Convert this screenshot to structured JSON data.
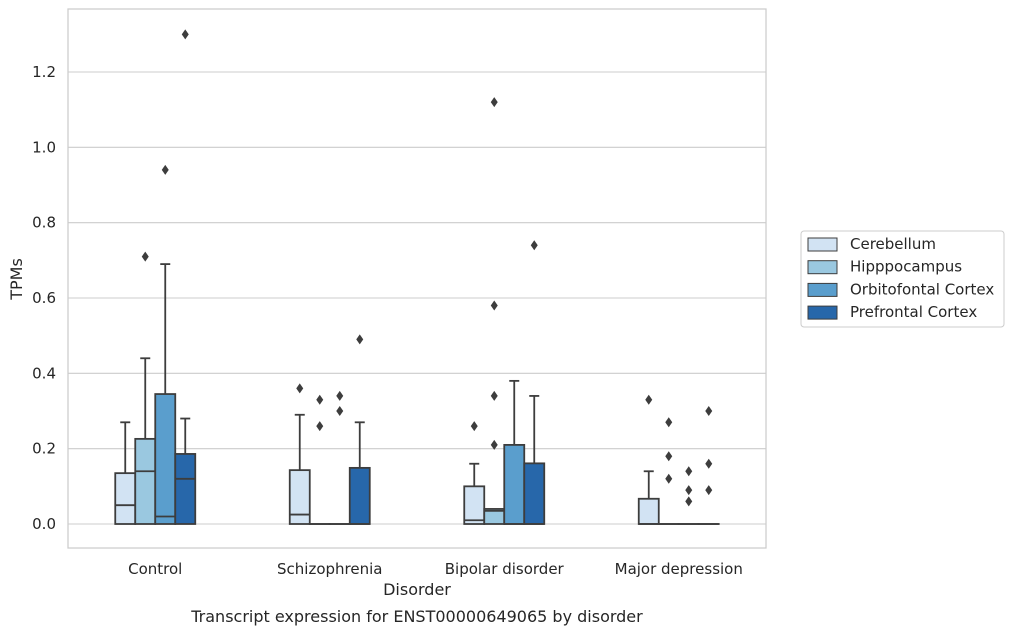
{
  "chart_data": {
    "type": "box",
    "title": "",
    "caption": "Transcript expression for ENST00000649065 by disorder",
    "xlabel": "Disorder",
    "ylabel": "TPMs",
    "ylim": [
      -0.065,
      1.375
    ],
    "yticks": [
      0.0,
      0.2,
      0.4,
      0.6,
      0.8,
      1.0,
      1.2
    ],
    "ytick_labels": [
      "0.0",
      "0.2",
      "0.4",
      "0.6",
      "0.8",
      "1.0",
      "1.2"
    ],
    "grid": "horizontal",
    "legend_position": "right",
    "categories": [
      "Control",
      "Schizophrenia",
      "Bipolar disorder",
      "Major depression"
    ],
    "series": [
      {
        "name": "Cerebellum",
        "color": "#d2e3f3",
        "boxes": [
          {
            "q1": 0.0,
            "median": 0.05,
            "q3": 0.135,
            "whisker_low": 0.0,
            "whisker_high": 0.27,
            "outliers": []
          },
          {
            "q1": 0.0,
            "median": 0.025,
            "q3": 0.143,
            "whisker_low": 0.0,
            "whisker_high": 0.29,
            "outliers": [
              0.36
            ]
          },
          {
            "q1": 0.0,
            "median": 0.01,
            "q3": 0.1,
            "whisker_low": 0.0,
            "whisker_high": 0.16,
            "outliers": [
              0.26
            ]
          },
          {
            "q1": 0.0,
            "median": 0.0,
            "q3": 0.067,
            "whisker_low": 0.0,
            "whisker_high": 0.14,
            "outliers": [
              0.33
            ]
          }
        ]
      },
      {
        "name": "Hipppocampus",
        "color": "#9ac8e0",
        "boxes": [
          {
            "q1": 0.0,
            "median": 0.14,
            "q3": 0.226,
            "whisker_low": 0.0,
            "whisker_high": 0.44,
            "outliers": [
              0.71
            ]
          },
          {
            "q1": 0.0,
            "median": 0.0,
            "q3": 0.0,
            "whisker_low": 0.0,
            "whisker_high": 0.0,
            "outliers": [
              0.26,
              0.33
            ]
          },
          {
            "q1": 0.0,
            "median": 0.035,
            "q3": 0.04,
            "whisker_low": 0.0,
            "whisker_high": 0.04,
            "outliers": [
              0.21,
              0.34,
              0.58,
              1.12
            ]
          },
          {
            "q1": 0.0,
            "median": 0.0,
            "q3": 0.0,
            "whisker_low": 0.0,
            "whisker_high": 0.0,
            "outliers": [
              0.12,
              0.18,
              0.27
            ]
          }
        ]
      },
      {
        "name": "Orbitofontal Cortex",
        "color": "#5a9ecd",
        "boxes": [
          {
            "q1": 0.0,
            "median": 0.02,
            "q3": 0.345,
            "whisker_low": 0.0,
            "whisker_high": 0.69,
            "outliers": [
              0.94
            ]
          },
          {
            "q1": 0.0,
            "median": 0.0,
            "q3": 0.0,
            "whisker_low": 0.0,
            "whisker_high": 0.0,
            "outliers": [
              0.3,
              0.34
            ]
          },
          {
            "q1": 0.0,
            "median": 0.0,
            "q3": 0.21,
            "whisker_low": 0.0,
            "whisker_high": 0.38,
            "outliers": []
          },
          {
            "q1": 0.0,
            "median": 0.0,
            "q3": 0.0,
            "whisker_low": 0.0,
            "whisker_high": 0.0,
            "outliers": [
              0.06,
              0.09,
              0.14
            ]
          }
        ]
      },
      {
        "name": "Prefrontal Cortex",
        "color": "#2767aa",
        "boxes": [
          {
            "q1": 0.0,
            "median": 0.12,
            "q3": 0.186,
            "whisker_low": 0.0,
            "whisker_high": 0.28,
            "outliers": [
              1.3
            ]
          },
          {
            "q1": 0.0,
            "median": 0.0,
            "q3": 0.149,
            "whisker_low": 0.0,
            "whisker_high": 0.27,
            "outliers": [
              0.49
            ]
          },
          {
            "q1": 0.0,
            "median": 0.0,
            "q3": 0.161,
            "whisker_low": 0.0,
            "whisker_high": 0.34,
            "outliers": [
              0.74
            ]
          },
          {
            "q1": 0.0,
            "median": 0.0,
            "q3": 0.0,
            "whisker_low": 0.0,
            "whisker_high": 0.0,
            "outliers": [
              0.09,
              0.16,
              0.3
            ]
          }
        ]
      }
    ]
  }
}
